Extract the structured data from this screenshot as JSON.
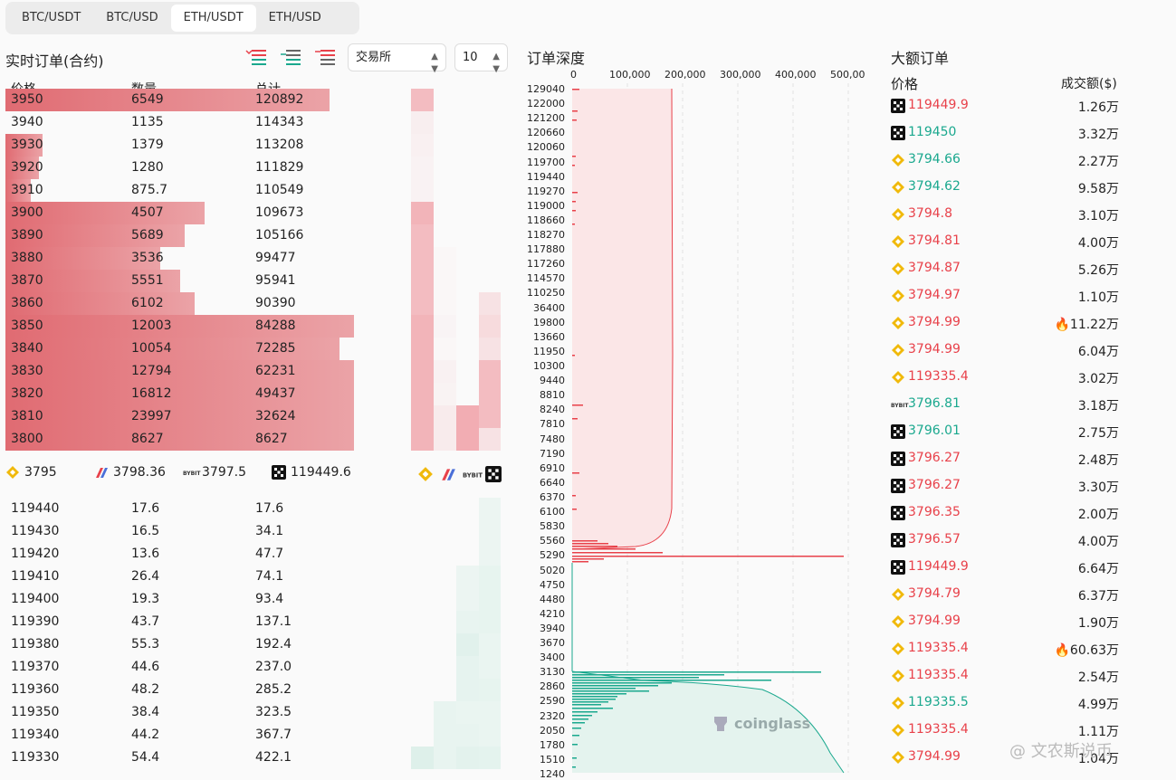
{
  "tabs": [
    "BTC/USDT",
    "BTC/USD",
    "ETH/USDT",
    "ETH/USD"
  ],
  "active_tab": 2,
  "left": {
    "title": "实时订单(合约)",
    "exchange_select": "交易所",
    "depth_select": "10",
    "headers": [
      "价格",
      "数量",
      "总计"
    ],
    "asks": [
      {
        "price": "3950",
        "qty": "6549",
        "total": "120892",
        "bar": 0.65
      },
      {
        "price": "3940",
        "qty": "1135",
        "total": "114343",
        "bar": 0.0
      },
      {
        "price": "3930",
        "qty": "1379",
        "total": "113208",
        "bar": 0.075
      },
      {
        "price": "3920",
        "qty": "1280",
        "total": "111829",
        "bar": 0.068
      },
      {
        "price": "3910",
        "qty": "875.7",
        "total": "110549",
        "bar": 0.05
      },
      {
        "price": "3900",
        "qty": "4507",
        "total": "109673",
        "bar": 0.4
      },
      {
        "price": "3890",
        "qty": "5689",
        "total": "105166",
        "bar": 0.36
      },
      {
        "price": "3880",
        "qty": "3536",
        "total": "99477",
        "bar": 0.31
      },
      {
        "price": "3870",
        "qty": "5551",
        "total": "95941",
        "bar": 0.35
      },
      {
        "price": "3860",
        "qty": "6102",
        "total": "90390",
        "bar": 0.38
      },
      {
        "price": "3850",
        "qty": "12003",
        "total": "84288",
        "bar": 0.7
      },
      {
        "price": "3840",
        "qty": "10054",
        "total": "72285",
        "bar": 0.67
      },
      {
        "price": "3830",
        "qty": "12794",
        "total": "62231",
        "bar": 0.7
      },
      {
        "price": "3820",
        "qty": "16812",
        "total": "49437",
        "bar": 0.7
      },
      {
        "price": "3810",
        "qty": "23997",
        "total": "32624",
        "bar": 0.7
      },
      {
        "price": "3800",
        "qty": "8627",
        "total": "8627",
        "bar": 0.7
      }
    ],
    "exchanges": [
      {
        "icon": "binance-icon",
        "value": "3795"
      },
      {
        "icon": "bitmex-icon",
        "value": "3798.36"
      },
      {
        "icon": "bybit-icon",
        "value": "3797.5"
      },
      {
        "icon": "okx-icon",
        "value": "119449.6"
      }
    ],
    "bids": [
      {
        "price": "119440",
        "qty": "17.6",
        "total": "17.6"
      },
      {
        "price": "119430",
        "qty": "16.5",
        "total": "34.1"
      },
      {
        "price": "119420",
        "qty": "13.6",
        "total": "47.7"
      },
      {
        "price": "119410",
        "qty": "26.4",
        "total": "74.1"
      },
      {
        "price": "119400",
        "qty": "19.3",
        "total": "93.4"
      },
      {
        "price": "119390",
        "qty": "43.7",
        "total": "137.1"
      },
      {
        "price": "119380",
        "qty": "55.3",
        "total": "192.4"
      },
      {
        "price": "119370",
        "qty": "44.6",
        "total": "237.0"
      },
      {
        "price": "119360",
        "qty": "48.2",
        "total": "285.2"
      },
      {
        "price": "119350",
        "qty": "38.4",
        "total": "323.5"
      },
      {
        "price": "119340",
        "qty": "44.2",
        "total": "367.7"
      },
      {
        "price": "119330",
        "qty": "54.4",
        "total": "422.1"
      }
    ]
  },
  "depth": {
    "title": "订单深度",
    "x_ticks": [
      "0",
      "100,000",
      "200,000",
      "300,000",
      "400,000",
      "500,00"
    ],
    "y_ticks": [
      "129040",
      "122000",
      "121200",
      "120660",
      "120060",
      "119700",
      "119440",
      "119270",
      "119000",
      "118660",
      "118270",
      "117880",
      "117260",
      "114570",
      "110250",
      "36400",
      "19800",
      "13660",
      "11950",
      "10300",
      "9440",
      "8810",
      "8240",
      "7810",
      "7480",
      "7190",
      "6910",
      "6640",
      "6370",
      "6100",
      "5830",
      "5560",
      "5290",
      "5020",
      "4750",
      "4480",
      "4210",
      "3940",
      "3670",
      "3400",
      "3130",
      "2860",
      "2590",
      "2320",
      "2050",
      "1780",
      "1510",
      "1240"
    ],
    "watermark": "coinglass"
  },
  "big_orders": {
    "title": "大额订单",
    "headers": [
      "价格",
      "成交额($)"
    ],
    "rows": [
      {
        "icon": "okx-icon",
        "price": "119449.9",
        "side": "red",
        "value": "1.26万",
        "hot": false
      },
      {
        "icon": "okx-icon",
        "price": "119450",
        "side": "green",
        "value": "3.32万",
        "hot": false
      },
      {
        "icon": "binance-icon",
        "price": "3794.66",
        "side": "green",
        "value": "2.27万",
        "hot": false
      },
      {
        "icon": "binance-icon",
        "price": "3794.62",
        "side": "green",
        "value": "9.58万",
        "hot": false
      },
      {
        "icon": "binance-icon",
        "price": "3794.8",
        "side": "red",
        "value": "3.10万",
        "hot": false
      },
      {
        "icon": "binance-icon",
        "price": "3794.81",
        "side": "red",
        "value": "4.00万",
        "hot": false
      },
      {
        "icon": "binance-icon",
        "price": "3794.87",
        "side": "red",
        "value": "5.26万",
        "hot": false
      },
      {
        "icon": "binance-icon",
        "price": "3794.97",
        "side": "red",
        "value": "1.10万",
        "hot": false
      },
      {
        "icon": "binance-icon",
        "price": "3794.99",
        "side": "red",
        "value": "11.22万",
        "hot": true
      },
      {
        "icon": "binance-icon",
        "price": "3794.99",
        "side": "red",
        "value": "6.04万",
        "hot": false
      },
      {
        "icon": "binance-icon",
        "price": "119335.4",
        "side": "red",
        "value": "3.02万",
        "hot": false
      },
      {
        "icon": "bybit-icon",
        "price": "3796.81",
        "side": "green",
        "value": "3.18万",
        "hot": false
      },
      {
        "icon": "okx-icon",
        "price": "3796.01",
        "side": "green",
        "value": "2.75万",
        "hot": false
      },
      {
        "icon": "okx-icon",
        "price": "3796.27",
        "side": "red",
        "value": "2.48万",
        "hot": false
      },
      {
        "icon": "okx-icon",
        "price": "3796.27",
        "side": "red",
        "value": "3.30万",
        "hot": false
      },
      {
        "icon": "okx-icon",
        "price": "3796.35",
        "side": "red",
        "value": "2.00万",
        "hot": false
      },
      {
        "icon": "okx-icon",
        "price": "3796.57",
        "side": "red",
        "value": "4.00万",
        "hot": false
      },
      {
        "icon": "okx-icon",
        "price": "119449.9",
        "side": "red",
        "value": "6.64万",
        "hot": false
      },
      {
        "icon": "binance-icon",
        "price": "3794.79",
        "side": "red",
        "value": "6.37万",
        "hot": false
      },
      {
        "icon": "binance-icon",
        "price": "3794.99",
        "side": "red",
        "value": "1.90万",
        "hot": false
      },
      {
        "icon": "binance-icon",
        "price": "119335.4",
        "side": "red",
        "value": "60.63万",
        "hot": true
      },
      {
        "icon": "binance-icon",
        "price": "119335.4",
        "side": "red",
        "value": "2.54万",
        "hot": false
      },
      {
        "icon": "binance-icon",
        "price": "119335.5",
        "side": "green",
        "value": "4.99万",
        "hot": false
      },
      {
        "icon": "binance-icon",
        "price": "119335.4",
        "side": "red",
        "value": "1.11万",
        "hot": false
      },
      {
        "icon": "binance-icon",
        "price": "3794.99",
        "side": "red",
        "value": "1.04万",
        "hot": false
      }
    ]
  },
  "footer_watermark": "@ 文农斯说币",
  "colors": {
    "ask": "#e8414a",
    "bid": "#1aa88e",
    "ask_bar": "#e25b63",
    "bid_bar": "#bfe6da"
  }
}
